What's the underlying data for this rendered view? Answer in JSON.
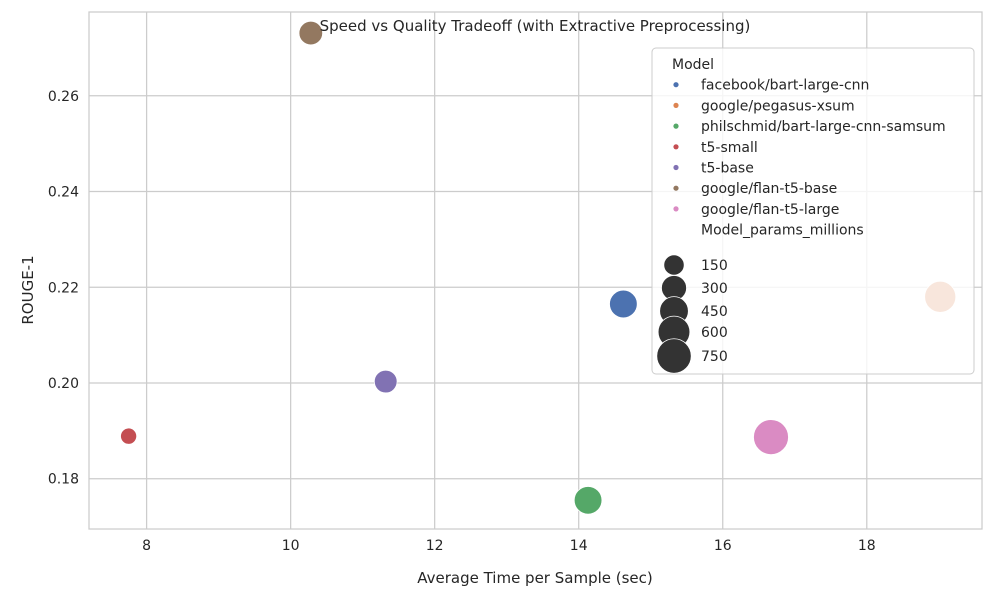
{
  "chart_data": {
    "type": "scatter",
    "title": "Speed vs Quality Tradeoff (with Extractive Preprocessing)",
    "xlabel": "Average Time per Sample (sec)",
    "ylabel": "ROUGE-1",
    "xlim": [
      7.2,
      19.6
    ],
    "ylim": [
      0.1695,
      0.2775
    ],
    "xticks": [
      8,
      10,
      12,
      14,
      16,
      18
    ],
    "yticks": [
      0.18,
      0.2,
      0.22,
      0.24,
      0.26
    ],
    "xtick_labels": [
      "8",
      "10",
      "12",
      "14",
      "16",
      "18"
    ],
    "ytick_labels": [
      "0.18",
      "0.20",
      "0.22",
      "0.24",
      "0.26"
    ],
    "grid": true,
    "legend_position": "top-right",
    "legend": {
      "hue_title": "Model",
      "size_title": "Model_params_millions",
      "size_levels": [
        150,
        300,
        450,
        600,
        750
      ],
      "size_labels": [
        "150",
        "300",
        "450",
        "600",
        "750"
      ]
    },
    "series": [
      {
        "name": "facebook/bart-large-cnn",
        "color": "#4c72b0",
        "x": 14.62,
        "y": 0.2165,
        "params_millions": 406
      },
      {
        "name": "google/pegasus-xsum",
        "color": "#dd8452",
        "x": 19.02,
        "y": 0.218,
        "params_millions": 568
      },
      {
        "name": "philschmid/bart-large-cnn-samsum",
        "color": "#55a868",
        "x": 14.13,
        "y": 0.1755,
        "params_millions": 406
      },
      {
        "name": "t5-small",
        "color": "#c44e52",
        "x": 7.75,
        "y": 0.1889,
        "params_millions": 60
      },
      {
        "name": "t5-base",
        "color": "#8172b3",
        "x": 11.32,
        "y": 0.2003,
        "params_millions": 220
      },
      {
        "name": "google/flan-t5-base",
        "color": "#937860",
        "x": 10.28,
        "y": 0.2731,
        "params_millions": 248
      },
      {
        "name": "google/flan-t5-large",
        "color": "#da8bc3",
        "x": 16.67,
        "y": 0.1887,
        "params_millions": 783
      }
    ]
  }
}
